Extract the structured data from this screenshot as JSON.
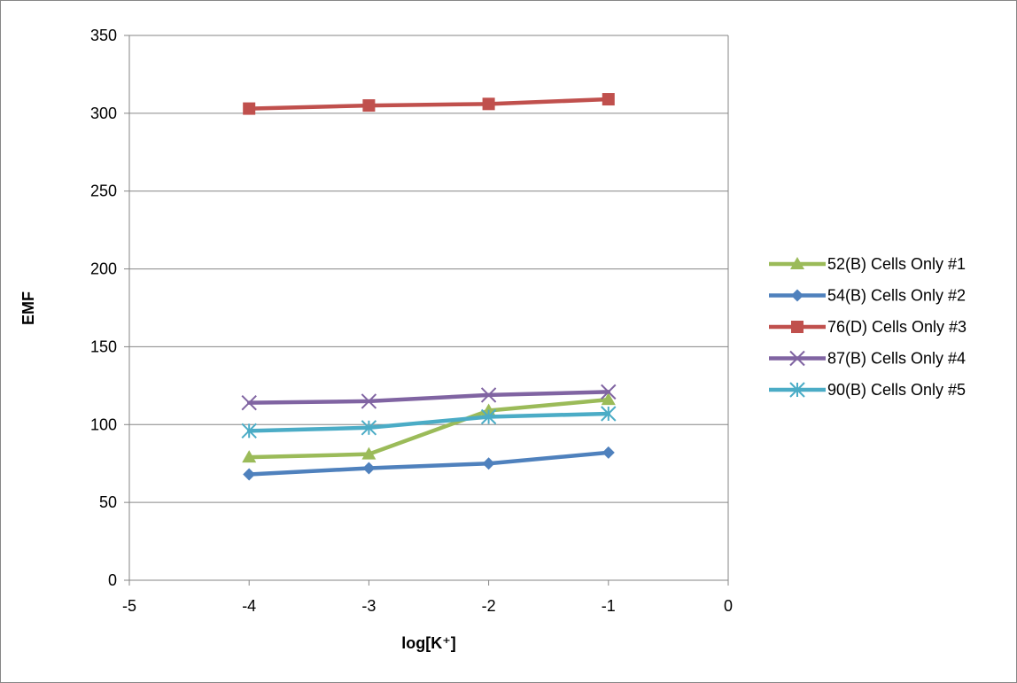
{
  "chart_data": {
    "type": "line",
    "title": "",
    "xlabel": "log[K⁺]",
    "ylabel": "EMF",
    "xlim": [
      -5,
      0
    ],
    "ylim": [
      0,
      350
    ],
    "x_ticks": [
      "-5",
      "-4",
      "-3",
      "-2",
      "-1",
      "0"
    ],
    "y_ticks": [
      "0",
      "50",
      "100",
      "150",
      "200",
      "250",
      "300",
      "350"
    ],
    "grid": "horizontal major gridlines",
    "legend_position": "right",
    "x": [
      -4,
      -3,
      -2,
      -1
    ],
    "series": [
      {
        "name": "52(B) Cells Only #1",
        "values": [
          79,
          81,
          109,
          116
        ],
        "color": "#9BBB59",
        "marker": "triangle"
      },
      {
        "name": "54(B) Cells Only #2",
        "values": [
          68,
          72,
          75,
          82
        ],
        "color": "#4F81BD",
        "marker": "diamond"
      },
      {
        "name": "76(D) Cells Only #3",
        "values": [
          303,
          305,
          306,
          309
        ],
        "color": "#C0504D",
        "marker": "square"
      },
      {
        "name": "87(B) Cells Only #4",
        "values": [
          114,
          115,
          119,
          121
        ],
        "color": "#8064A2",
        "marker": "x"
      },
      {
        "name": "90(B) Cells Only #5",
        "values": [
          96,
          98,
          105,
          107
        ],
        "color": "#4BACC6",
        "marker": "star"
      }
    ]
  }
}
